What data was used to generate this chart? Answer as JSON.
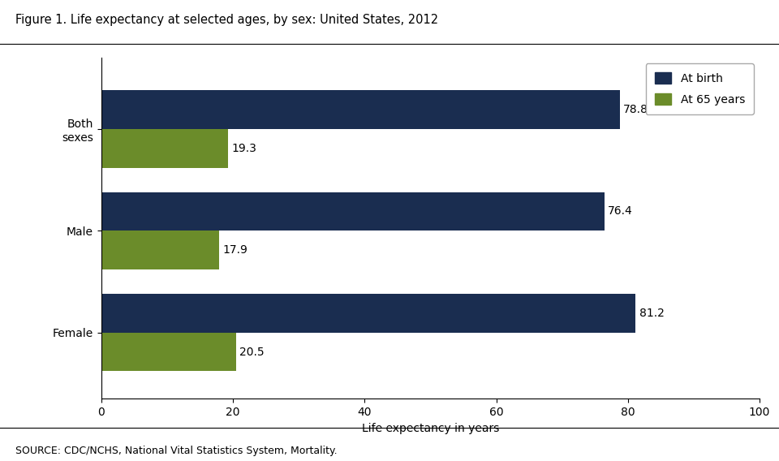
{
  "title": "Figure 1. Life expectancy at selected ages, by sex: United States, 2012",
  "categories": [
    "Both\nsexes",
    "Male",
    "Female"
  ],
  "at_birth": [
    78.8,
    76.4,
    81.2
  ],
  "at_65": [
    19.3,
    17.9,
    20.5
  ],
  "color_birth": "#1a2d50",
  "color_65": "#6b8c2a",
  "xlabel": "Life expectancy in years",
  "xlim": [
    0,
    100
  ],
  "xticks": [
    0,
    20,
    40,
    60,
    80,
    100
  ],
  "source": "SOURCE: CDC/NCHS, National Vital Statistics System, Mortality.",
  "legend_labels": [
    "At birth",
    "At 65 years"
  ],
  "bar_height": 0.38,
  "label_fontsize": 10,
  "title_fontsize": 10.5,
  "axis_label_fontsize": 10,
  "tick_fontsize": 10,
  "source_fontsize": 9
}
